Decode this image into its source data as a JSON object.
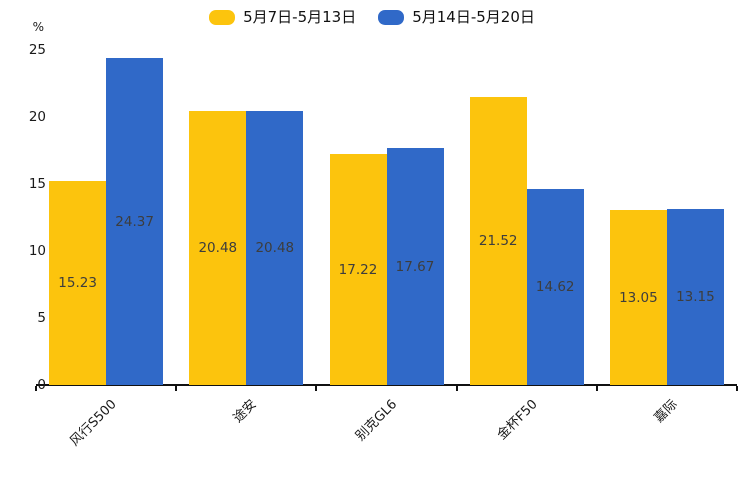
{
  "chart_data": {
    "type": "bar",
    "title": "",
    "xlabel": "",
    "ylabel": "%",
    "categories": [
      "风行S500",
      "途安",
      "别克GL6",
      "金杯F50",
      "嘉际"
    ],
    "series": [
      {
        "name": "5月7日-5月13日",
        "color": "#FCC40D",
        "values": [
          15.23,
          20.48,
          17.22,
          21.52,
          13.05
        ]
      },
      {
        "name": "5月14日-5月20日",
        "color": "#3069C8",
        "values": [
          24.37,
          20.48,
          17.67,
          14.62,
          13.15
        ]
      }
    ],
    "ylim": [
      0,
      25
    ],
    "yticks": [
      0,
      5,
      10,
      15,
      20,
      25
    ],
    "grid": false,
    "legend_position": "top-center",
    "value_labels": "inside-center",
    "value_label_color": "#3d3d3d",
    "xtick_rotation_deg": 45
  }
}
